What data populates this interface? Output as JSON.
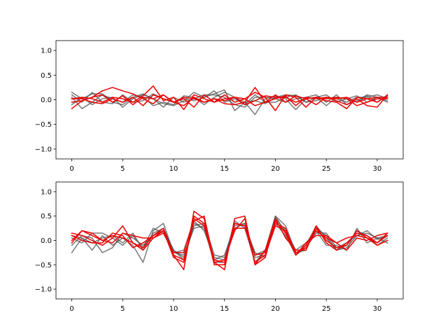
{
  "chart_data": [
    {
      "type": "line",
      "panel": "top",
      "xlim": [
        -1.55,
        32.55
      ],
      "ylim": [
        -1.2,
        1.2
      ],
      "xticks": [
        0,
        5,
        10,
        15,
        20,
        25,
        30
      ],
      "yticks": [
        -1.0,
        -0.5,
        0.0,
        0.5,
        1.0
      ],
      "xtick_labels": [
        "0",
        "5",
        "10",
        "15",
        "20",
        "25",
        "30"
      ],
      "ytick_labels": [
        "−1.0",
        "−0.5",
        "0.0",
        "0.5",
        "1.0"
      ],
      "grid": false,
      "colors": {
        "gray_series": "#4d4d4d",
        "red_series": "#ee0000"
      },
      "x": [
        0,
        1,
        2,
        3,
        4,
        5,
        6,
        7,
        8,
        9,
        10,
        11,
        12,
        13,
        14,
        15,
        16,
        17,
        18,
        19,
        20,
        21,
        22,
        23,
        24,
        25,
        26,
        27,
        28,
        29,
        30,
        31
      ],
      "series": [
        {
          "group": "gray",
          "values": [
            0.15,
            0.02,
            0.12,
            0.12,
            -0.05,
            -0.1,
            0.05,
            0.12,
            0.02,
            -0.08,
            -0.12,
            -0.02,
            0.15,
            0.05,
            0.12,
            0.2,
            -0.22,
            -0.05,
            -0.02,
            -0.08,
            0.05,
            0.1,
            0.08,
            -0.05,
            0.05,
            -0.12,
            0.05,
            0.02,
            -0.05,
            0.08,
            -0.05,
            0.1
          ]
        },
        {
          "group": "gray",
          "values": [
            0.05,
            -0.18,
            -0.05,
            0.1,
            0.02,
            -0.05,
            0.1,
            0.05,
            -0.12,
            -0.05,
            -0.1,
            0.08,
            0.05,
            -0.1,
            0.05,
            0.15,
            0.05,
            -0.05,
            -0.3,
            0.02,
            0.08,
            0.02,
            -0.2,
            0.02,
            0.05,
            0.1,
            -0.05,
            0.02,
            0.08,
            -0.05,
            0.05,
            -0.05
          ]
        },
        {
          "group": "gray",
          "values": [
            -0.1,
            0.05,
            -0.1,
            0.02,
            0.05,
            -0.15,
            0.02,
            0.1,
            0.02,
            -0.15,
            0.05,
            -0.05,
            0.02,
            0.1,
            0.1,
            0.05,
            -0.1,
            -0.15,
            0.05,
            0.05,
            0.02,
            -0.05,
            0.02,
            0.05,
            0.1,
            -0.05,
            0.1,
            -0.1,
            -0.02,
            0.1,
            0.05,
            -0.02
          ]
        },
        {
          "group": "gray",
          "values": [
            0.1,
            -0.05,
            0.15,
            -0.05,
            -0.08,
            0.1,
            -0.05,
            -0.02,
            0.12,
            0.02,
            -0.05,
            0.02,
            -0.02,
            0.05,
            0.18,
            -0.05,
            0.02,
            -0.1,
            0.1,
            -0.05,
            -0.05,
            0.05,
            0.1,
            -0.05,
            -0.02,
            0.05,
            0.02,
            -0.05,
            0.05,
            0.05,
            0.1,
            0.02
          ]
        },
        {
          "group": "red",
          "values": [
            -0.18,
            -0.02,
            0.05,
            0.18,
            0.25,
            0.18,
            0.12,
            0.02,
            -0.08,
            0.1,
            -0.05,
            -0.12,
            0.05,
            -0.05,
            0.02,
            -0.08,
            -0.1,
            -0.05,
            0.25,
            -0.05,
            0.02,
            0.08,
            -0.12,
            0.05,
            0.02,
            0.05,
            -0.02,
            -0.1,
            0.02,
            -0.12,
            -0.15,
            0.1
          ]
        },
        {
          "group": "red",
          "values": [
            0.02,
            0.05,
            0.02,
            -0.05,
            0.05,
            0.02,
            -0.05,
            0.08,
            0.28,
            -0.02,
            0.05,
            -0.2,
            0.1,
            0.02,
            -0.05,
            0.1,
            -0.05,
            0.02,
            0.15,
            0.05,
            -0.22,
            0.1,
            0.05,
            -0.15,
            0.05,
            -0.02,
            -0.05,
            -0.18,
            0.05,
            0.02,
            -0.05,
            0.08
          ]
        },
        {
          "group": "red",
          "values": [
            -0.05,
            -0.02,
            0.05,
            0.1,
            -0.05,
            0.08,
            -0.1,
            0.05,
            0.02,
            0.1,
            -0.05,
            0.02,
            -0.15,
            0.1,
            -0.05,
            0.02,
            0.05,
            0.02,
            -0.12,
            -0.05,
            0.1,
            -0.05,
            0.08,
            0.02,
            -0.1,
            0.05,
            0.02,
            0.05,
            -0.05,
            0.02,
            0.05,
            0.05
          ]
        },
        {
          "group": "red",
          "values": [
            0.02,
            0.02,
            -0.05,
            -0.08,
            0.02,
            -0.05,
            0.05,
            -0.12,
            0.1,
            0.02,
            -0.05,
            0.05,
            0.02,
            -0.05,
            0.02,
            -0.02,
            0.05,
            -0.1,
            -0.02,
            0.08,
            0.05,
            0.05,
            -0.05,
            0.02,
            0.05,
            0.02,
            0.05,
            0.02,
            -0.12,
            -0.05,
            0.02,
            0.02
          ]
        }
      ]
    },
    {
      "type": "line",
      "panel": "bottom",
      "xlim": [
        -1.55,
        32.55
      ],
      "ylim": [
        -1.2,
        1.2
      ],
      "xticks": [
        0,
        5,
        10,
        15,
        20,
        25,
        30
      ],
      "yticks": [
        -1.0,
        -0.5,
        0.0,
        0.5,
        1.0
      ],
      "xtick_labels": [
        "0",
        "5",
        "10",
        "15",
        "20",
        "25",
        "30"
      ],
      "ytick_labels": [
        "−1.0",
        "−0.5",
        "0.0",
        "0.5",
        "1.0"
      ],
      "grid": false,
      "colors": {
        "gray_series": "#4d4d4d",
        "red_series": "#ee0000"
      },
      "x": [
        0,
        1,
        2,
        3,
        4,
        5,
        6,
        7,
        8,
        9,
        10,
        11,
        12,
        13,
        14,
        15,
        16,
        17,
        18,
        19,
        20,
        21,
        22,
        23,
        24,
        25,
        26,
        27,
        28,
        29,
        30,
        31
      ],
      "series": [
        {
          "group": "gray",
          "values": [
            -0.25,
            0.05,
            -0.2,
            0.1,
            -0.1,
            0.05,
            -0.1,
            -0.45,
            0.2,
            0.35,
            -0.25,
            -0.3,
            0.25,
            0.3,
            -0.4,
            -0.3,
            0.3,
            0.35,
            -0.3,
            -0.2,
            0.5,
            0.15,
            -0.3,
            -0.1,
            0.3,
            0.05,
            -0.2,
            -0.1,
            0.2,
            0.1,
            -0.1,
            0.05
          ]
        },
        {
          "group": "gray",
          "values": [
            -0.1,
            0.1,
            0.05,
            -0.25,
            -0.15,
            0.15,
            0.05,
            -0.1,
            0.1,
            0.2,
            -0.2,
            -0.35,
            0.35,
            0.25,
            -0.45,
            -0.45,
            0.35,
            0.3,
            -0.25,
            -0.35,
            0.45,
            0.2,
            -0.2,
            -0.05,
            0.2,
            -0.1,
            -0.1,
            -0.2,
            0.25,
            -0.05,
            0.05,
            0.1
          ]
        },
        {
          "group": "gray",
          "values": [
            0.05,
            -0.05,
            0.15,
            0.15,
            0.05,
            -0.1,
            0.1,
            -0.15,
            0.25,
            0.15,
            -0.25,
            -0.2,
            0.4,
            0.2,
            -0.35,
            -0.4,
            0.4,
            0.25,
            -0.45,
            -0.2,
            0.35,
            0.1,
            -0.3,
            -0.15,
            0.15,
            0.15,
            -0.15,
            -0.05,
            0.1,
            0.15,
            0.05,
            -0.05
          ]
        },
        {
          "group": "gray",
          "values": [
            0.1,
            0.05,
            -0.05,
            0.05,
            0.1,
            -0.05,
            0.15,
            -0.2,
            0.15,
            0.25,
            -0.2,
            -0.4,
            0.3,
            0.35,
            -0.3,
            -0.35,
            0.25,
            0.35,
            -0.35,
            -0.3,
            0.5,
            0.3,
            -0.25,
            -0.2,
            0.25,
            0.1,
            -0.2,
            -0.15,
            0.1,
            0.2,
            0.02,
            0.1
          ]
        },
        {
          "group": "red",
          "values": [
            0.15,
            0.1,
            0.0,
            -0.1,
            0.05,
            0.3,
            -0.05,
            -0.15,
            0.1,
            0.25,
            -0.3,
            -0.6,
            0.6,
            0.45,
            -0.45,
            -0.6,
            0.45,
            0.5,
            -0.5,
            -0.35,
            0.4,
            0.15,
            -0.3,
            -0.1,
            0.25,
            0.0,
            -0.15,
            -0.1,
            0.2,
            0.05,
            -0.05,
            0.1
          ]
        },
        {
          "group": "red",
          "values": [
            0.0,
            0.2,
            0.1,
            0.0,
            0.1,
            0.05,
            -0.05,
            -0.2,
            0.05,
            0.2,
            -0.35,
            -0.45,
            0.5,
            0.35,
            -0.5,
            -0.5,
            0.35,
            0.3,
            -0.45,
            -0.3,
            0.3,
            0.2,
            -0.25,
            -0.15,
            0.2,
            0.05,
            -0.05,
            -0.2,
            0.05,
            0.0,
            0.1,
            0.15
          ]
        },
        {
          "group": "red",
          "values": [
            -0.05,
            0.2,
            0.15,
            0.0,
            -0.05,
            0.15,
            0.1,
            0.05,
            0.05,
            0.15,
            -0.25,
            -0.25,
            0.45,
            0.3,
            -0.4,
            -0.45,
            0.25,
            0.25,
            -0.3,
            -0.25,
            0.35,
            0.25,
            -0.3,
            -0.05,
            0.1,
            0.1,
            -0.05,
            0.05,
            0.1,
            0.05,
            -0.1,
            0.0
          ]
        },
        {
          "group": "red",
          "values": [
            0.1,
            0.0,
            -0.05,
            -0.05,
            0.15,
            0.1,
            -0.15,
            -0.05,
            0.1,
            0.2,
            -0.3,
            -0.4,
            0.4,
            0.5,
            -0.45,
            -0.4,
            0.2,
            0.45,
            -0.5,
            -0.2,
            0.45,
            0.05,
            -0.2,
            -0.2,
            0.3,
            -0.05,
            -0.2,
            -0.05,
            0.15,
            0.1,
            -0.05,
            0.15
          ]
        }
      ]
    }
  ]
}
